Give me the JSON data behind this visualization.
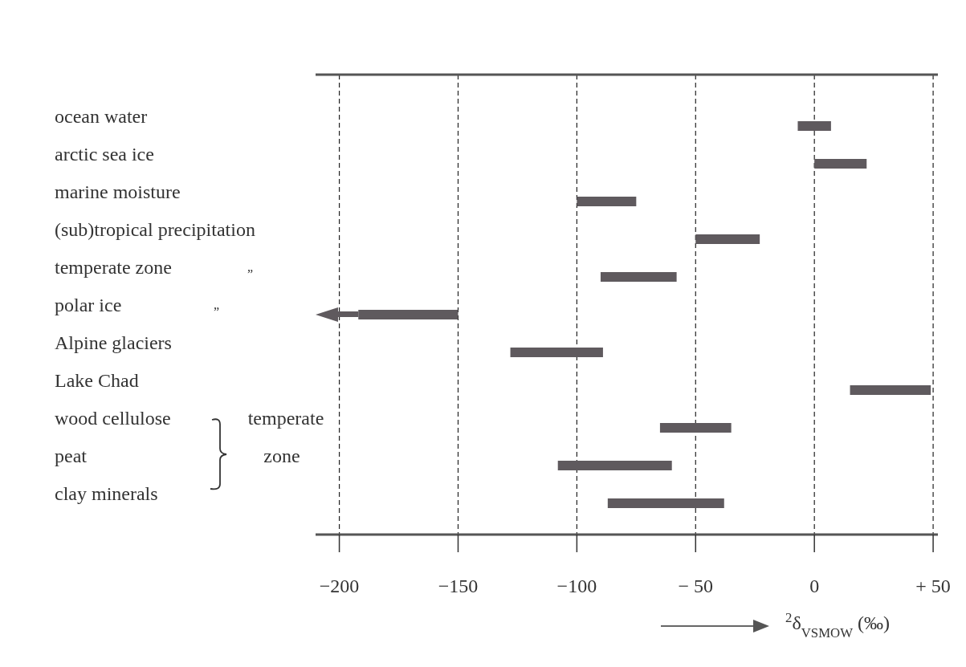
{
  "chart_data": {
    "type": "bar",
    "orientation": "horizontal",
    "xlabel": "$^{2}$δ$_{VSMOW}$ (‰)",
    "categories": [
      "ocean water",
      "arctic sea ice",
      "marine moisture",
      "(sub)tropical precipitation",
      "temperate zone",
      "polar ice",
      "Alpine glaciers",
      "Lake Chad",
      "wood cellulose",
      "peat",
      "clay minerals"
    ],
    "base": [
      -7,
      0,
      -100,
      -50,
      -90,
      -192,
      -128,
      15,
      -65,
      -108,
      -87
    ],
    "values": [
      14,
      22,
      25,
      27,
      32,
      42,
      39,
      34,
      30,
      48,
      49
    ],
    "color": "#5f5a5e",
    "xlim": [
      -210,
      52
    ],
    "xticks": [
      {
        "value": -200,
        "label": "−200"
      },
      {
        "value": -150,
        "label": "−150"
      },
      {
        "value": -100,
        "label": "−100"
      },
      {
        "value": -50,
        "label": "− 50"
      },
      0,
      {
        "value": 50,
        "label": "+ 50"
      }
    ],
    "grid": "x",
    "annotations": [
      "”",
      "”",
      "temperate zone"
    ]
  }
}
